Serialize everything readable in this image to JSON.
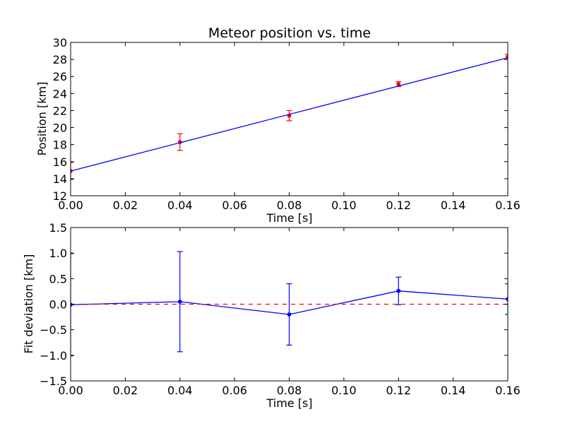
{
  "chart_data": [
    {
      "type": "scatter",
      "title": "Meteor position vs. time",
      "xlabel": "Time [s]",
      "ylabel": "Position [km]",
      "xlim": [
        0.0,
        0.16
      ],
      "ylim": [
        12,
        30
      ],
      "xticks": [
        "0.00",
        "0.02",
        "0.04",
        "0.06",
        "0.08",
        "0.10",
        "0.12",
        "0.14",
        "0.16"
      ],
      "yticks": [
        "12",
        "14",
        "16",
        "18",
        "20",
        "22",
        "24",
        "26",
        "28",
        "30"
      ],
      "grid": false,
      "series": [
        {
          "style": "points-with-errorbars",
          "color": "#ff0000",
          "x": [
            0.0,
            0.04,
            0.08,
            0.12,
            0.16
          ],
          "y": [
            14.9,
            18.3,
            21.4,
            25.1,
            28.3
          ],
          "yerr": [
            1.0,
            0.98,
            0.6,
            0.28,
            0.3
          ]
        },
        {
          "style": "line",
          "color": "#0000ff",
          "x": [
            0.0,
            0.16
          ],
          "y": [
            14.9,
            28.2
          ]
        }
      ]
    },
    {
      "type": "line",
      "title": "",
      "xlabel": "Time [s]",
      "ylabel": "Fit deviation [km]",
      "xlim": [
        0.0,
        0.16
      ],
      "ylim": [
        -1.5,
        1.5
      ],
      "xticks": [
        "0.00",
        "0.02",
        "0.04",
        "0.06",
        "0.08",
        "0.10",
        "0.12",
        "0.14",
        "0.16"
      ],
      "yticks": [
        "1.5",
        "1.0",
        "0.5",
        "0.0",
        "−0.5",
        "−1.0",
        "−1.5"
      ],
      "ytick_values": [
        1.5,
        1.0,
        0.5,
        0.0,
        -0.5,
        -1.0,
        -1.5
      ],
      "grid": false,
      "series": [
        {
          "style": "line-with-errorbars",
          "color": "#0000ff",
          "x": [
            0.0,
            0.04,
            0.08,
            0.12,
            0.16
          ],
          "y": [
            -0.01,
            0.05,
            -0.2,
            0.26,
            0.1
          ],
          "yerr": [
            1.0,
            0.98,
            0.6,
            0.27,
            0.3
          ]
        },
        {
          "style": "dashed-reference",
          "color": "#ff0000",
          "x": [
            0.0,
            0.16
          ],
          "y": [
            0.0,
            0.0
          ]
        }
      ]
    }
  ]
}
